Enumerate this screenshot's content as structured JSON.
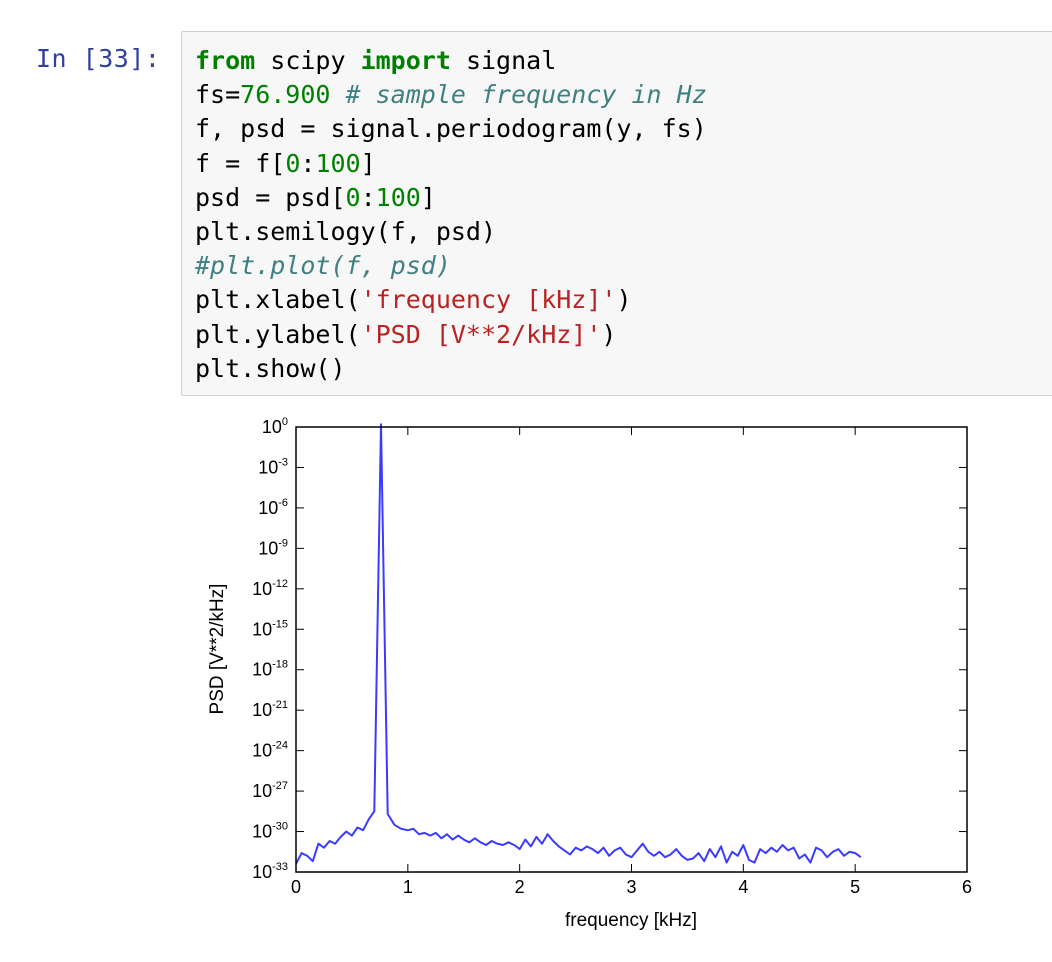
{
  "cell": {
    "prompt": "In [33]:",
    "code_lines": [
      [
        {
          "t": "from",
          "c": "kw"
        },
        {
          "t": " scipy ",
          "c": ""
        },
        {
          "t": "import",
          "c": "kw"
        },
        {
          "t": " signal",
          "c": ""
        }
      ],
      [
        {
          "t": "fs=",
          "c": ""
        },
        {
          "t": "76.900",
          "c": "num"
        },
        {
          "t": " # sample frequency in Hz",
          "c": "com"
        }
      ],
      [
        {
          "t": "f, psd = signal.periodogram(y, fs)",
          "c": ""
        }
      ],
      [
        {
          "t": "f = f[",
          "c": ""
        },
        {
          "t": "0",
          "c": "num"
        },
        {
          "t": ":",
          "c": ""
        },
        {
          "t": "100",
          "c": "num"
        },
        {
          "t": "]",
          "c": ""
        }
      ],
      [
        {
          "t": "psd = psd[",
          "c": ""
        },
        {
          "t": "0",
          "c": "num"
        },
        {
          "t": ":",
          "c": ""
        },
        {
          "t": "100",
          "c": "num"
        },
        {
          "t": "]",
          "c": ""
        }
      ],
      [
        {
          "t": "plt.semilogy(f, psd)",
          "c": ""
        }
      ],
      [
        {
          "t": "#plt.plot(f, psd)",
          "c": "com"
        }
      ],
      [
        {
          "t": "plt.xlabel(",
          "c": ""
        },
        {
          "t": "'frequency [kHz]'",
          "c": "str"
        },
        {
          "t": ")",
          "c": ""
        }
      ],
      [
        {
          "t": "plt.ylabel(",
          "c": ""
        },
        {
          "t": "'PSD [V**2/kHz]'",
          "c": "str"
        },
        {
          "t": ")",
          "c": ""
        }
      ],
      [
        {
          "t": "plt.show()",
          "c": ""
        }
      ]
    ]
  },
  "chart_data": {
    "type": "line",
    "xlabel": "frequency [kHz]",
    "ylabel": "PSD [V**2/kHz]",
    "xlim": [
      0,
      6
    ],
    "ylim_exponent": [
      -33,
      0
    ],
    "yscale": "log",
    "grid": false,
    "line_color": "#3b3bff",
    "xticks": [
      {
        "v": 0,
        "label": "0"
      },
      {
        "v": 1,
        "label": "1"
      },
      {
        "v": 2,
        "label": "2"
      },
      {
        "v": 3,
        "label": "3"
      },
      {
        "v": 4,
        "label": "4"
      },
      {
        "v": 5,
        "label": "5"
      },
      {
        "v": 6,
        "label": "6"
      }
    ],
    "yticks": [
      {
        "exp": 0,
        "base": "10",
        "sup": "0"
      },
      {
        "exp": -3,
        "base": "10",
        "sup": "-3"
      },
      {
        "exp": -6,
        "base": "10",
        "sup": "-6"
      },
      {
        "exp": -9,
        "base": "10",
        "sup": "-9"
      },
      {
        "exp": -12,
        "base": "10",
        "sup": "-12"
      },
      {
        "exp": -15,
        "base": "10",
        "sup": "-15"
      },
      {
        "exp": -18,
        "base": "10",
        "sup": "-18"
      },
      {
        "exp": -21,
        "base": "10",
        "sup": "-21"
      },
      {
        "exp": -24,
        "base": "10",
        "sup": "-24"
      },
      {
        "exp": -27,
        "base": "10",
        "sup": "-27"
      },
      {
        "exp": -30,
        "base": "10",
        "sup": "-30"
      },
      {
        "exp": -33,
        "base": "10",
        "sup": "-33"
      }
    ],
    "series": [
      {
        "x": [
          0.0,
          0.05,
          0.1,
          0.15,
          0.2,
          0.25,
          0.3,
          0.35,
          0.4,
          0.45,
          0.5,
          0.55,
          0.6,
          0.65,
          0.7,
          0.76,
          0.82,
          0.88,
          0.94,
          1.0,
          1.05,
          1.1,
          1.15,
          1.2,
          1.25,
          1.3,
          1.35,
          1.4,
          1.45,
          1.5,
          1.55,
          1.6,
          1.65,
          1.7,
          1.75,
          1.8,
          1.85,
          1.9,
          1.95,
          2.0,
          2.05,
          2.1,
          2.15,
          2.2,
          2.25,
          2.3,
          2.35,
          2.4,
          2.45,
          2.5,
          2.55,
          2.6,
          2.65,
          2.7,
          2.75,
          2.8,
          2.85,
          2.9,
          2.95,
          3.0,
          3.05,
          3.1,
          3.15,
          3.2,
          3.25,
          3.3,
          3.35,
          3.4,
          3.45,
          3.5,
          3.55,
          3.6,
          3.65,
          3.7,
          3.75,
          3.8,
          3.85,
          3.9,
          3.95,
          4.0,
          4.05,
          4.1,
          4.15,
          4.2,
          4.25,
          4.3,
          4.35,
          4.4,
          4.45,
          4.5,
          4.55,
          4.6,
          4.65,
          4.7,
          4.75,
          4.8,
          4.85,
          4.9,
          4.95,
          5.0,
          5.05
        ],
        "log10_psd": [
          -32.4,
          -31.6,
          -31.8,
          -32.2,
          -30.9,
          -31.2,
          -30.7,
          -30.9,
          -30.4,
          -30.0,
          -30.3,
          -29.7,
          -29.9,
          -29.1,
          -28.5,
          0.5,
          -28.7,
          -29.5,
          -29.8,
          -29.9,
          -29.8,
          -30.2,
          -30.1,
          -30.3,
          -30.1,
          -30.5,
          -30.2,
          -30.6,
          -30.3,
          -30.6,
          -30.8,
          -30.5,
          -30.8,
          -31.0,
          -30.7,
          -30.9,
          -31.0,
          -30.8,
          -31.0,
          -31.3,
          -30.6,
          -31.1,
          -30.4,
          -30.9,
          -30.2,
          -30.7,
          -31.1,
          -31.4,
          -31.7,
          -31.2,
          -31.4,
          -31.1,
          -31.3,
          -31.6,
          -31.2,
          -31.8,
          -31.4,
          -31.2,
          -31.7,
          -31.9,
          -31.4,
          -30.9,
          -31.5,
          -31.8,
          -31.5,
          -31.9,
          -31.7,
          -31.3,
          -31.8,
          -32.1,
          -32.0,
          -31.6,
          -32.2,
          -31.3,
          -31.9,
          -31.1,
          -32.3,
          -31.5,
          -31.8,
          -31.0,
          -32.1,
          -32.3,
          -31.3,
          -31.6,
          -31.2,
          -31.5,
          -31.0,
          -31.4,
          -31.2,
          -32.0,
          -31.7,
          -32.3,
          -31.2,
          -31.4,
          -31.9,
          -31.5,
          -31.3,
          -31.8,
          -31.5,
          -31.6,
          -31.9
        ]
      }
    ]
  }
}
